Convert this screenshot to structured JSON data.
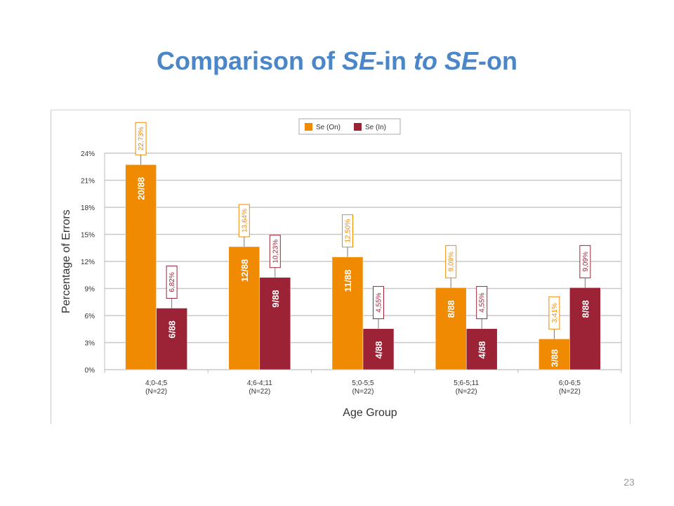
{
  "slide": {
    "title_parts": [
      {
        "text": "Comparison of ",
        "italic": false
      },
      {
        "text": "SE",
        "italic": true
      },
      {
        "text": "-in ",
        "italic": false
      },
      {
        "text": "to SE",
        "italic": true
      },
      {
        "text": "-on",
        "italic": false
      }
    ],
    "page_number": "23"
  },
  "colors": {
    "title": "#4a86c8",
    "se_on": "#f08a00",
    "se_in": "#9b2335",
    "grid": "#c8c8c8",
    "text": "#333333"
  },
  "chart_data": {
    "type": "bar",
    "xlabel": "Age Group",
    "ylabel": "Percentage of Errors",
    "ylim": [
      0,
      24
    ],
    "yticks": [
      "0%",
      "3%",
      "6%",
      "9%",
      "12%",
      "15%",
      "18%",
      "21%",
      "24%"
    ],
    "grid": true,
    "legend_position": "top-center",
    "categories": [
      [
        "4;0-4;5",
        "(N=22)"
      ],
      [
        "4;6-4;11",
        "(N=22)"
      ],
      [
        "5;0-5;5",
        "(N=22)"
      ],
      [
        "5;6-5;11",
        "(N=22)"
      ],
      [
        "6;0-6;5",
        "(N=22)"
      ]
    ],
    "series": [
      {
        "name": "Se (On)",
        "color": "#f08a00",
        "values": [
          22.73,
          13.64,
          12.5,
          9.09,
          3.41
        ],
        "value_labels": [
          "22,73%",
          "13,64%",
          "12,50%",
          "9,09%",
          "3,41%"
        ],
        "count_labels": [
          "20/88",
          "12/88",
          "11/88",
          "8/88",
          "3/88"
        ]
      },
      {
        "name": "Se (In)",
        "color": "#9b2335",
        "values": [
          6.82,
          10.23,
          4.55,
          4.55,
          9.09
        ],
        "value_labels": [
          "6,82%",
          "10,23%",
          "4,55%",
          "4,55%",
          "9,09%"
        ],
        "count_labels": [
          "6/88",
          "9/88",
          "4/88",
          "4/88",
          "8/88"
        ]
      }
    ]
  }
}
